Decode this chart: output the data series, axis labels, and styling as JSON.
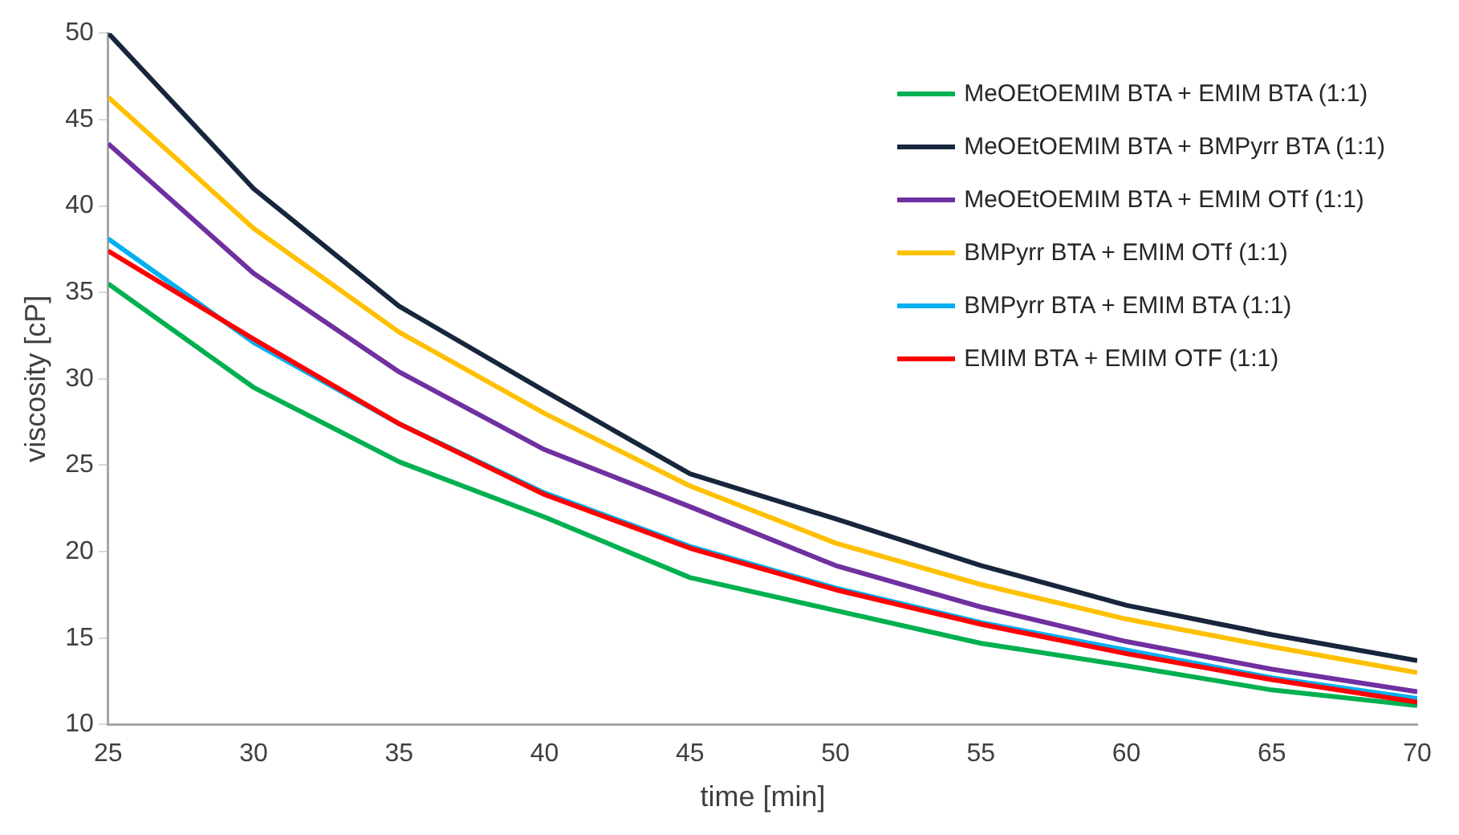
{
  "chart_data": {
    "type": "line",
    "xlabel": "time [min]",
    "ylabel": "viscosity [cP]",
    "x": [
      25,
      30,
      35,
      40,
      45,
      50,
      55,
      60,
      65,
      70
    ],
    "xlim": [
      25,
      70
    ],
    "xticks": [
      25,
      30,
      35,
      40,
      45,
      50,
      55,
      60,
      65,
      70
    ],
    "ylim": [
      10,
      50
    ],
    "yticks": [
      10,
      15,
      20,
      25,
      30,
      35,
      40,
      45,
      50
    ],
    "grid": false,
    "legend": "top right",
    "marker": "none",
    "line_style": "solid",
    "series": [
      {
        "name": "MeOEtOEMIM BTA + EMIM BTA (1:1)",
        "color": "#00b050",
        "values": [
          35.5,
          29.5,
          25.2,
          22.0,
          18.5,
          16.6,
          14.7,
          13.4,
          12.0,
          11.1
        ]
      },
      {
        "name": "MeOEtOEMIM BTA + BMPyrr BTA (1:1)",
        "color": "#17263c",
        "values": [
          50.0,
          41.0,
          34.2,
          29.3,
          24.5,
          21.9,
          19.2,
          16.9,
          15.2,
          13.7
        ]
      },
      {
        "name": "MeOEtOEMIM BTA + EMIM OTf (1:1)",
        "color": "#7030a0",
        "values": [
          43.6,
          36.1,
          30.4,
          25.9,
          22.6,
          19.2,
          16.8,
          14.8,
          13.2,
          11.9
        ]
      },
      {
        "name": "BMPyrr BTA + EMIM OTf  (1:1)",
        "color": "#ffc000",
        "values": [
          46.3,
          38.7,
          32.7,
          28.0,
          23.8,
          20.5,
          18.1,
          16.1,
          14.5,
          13.0
        ]
      },
      {
        "name": "BMPyrr BTA + EMIM BTA  (1:1)",
        "color": "#00b0f0",
        "values": [
          38.1,
          32.1,
          27.4,
          23.4,
          20.3,
          17.9,
          15.9,
          14.3,
          12.7,
          11.5
        ]
      },
      {
        "name": "EMIM BTA + EMIM OTF  (1:1)",
        "color": "#ff0000",
        "values": [
          37.4,
          32.3,
          27.4,
          23.3,
          20.2,
          17.8,
          15.8,
          14.1,
          12.6,
          11.3
        ]
      }
    ]
  }
}
